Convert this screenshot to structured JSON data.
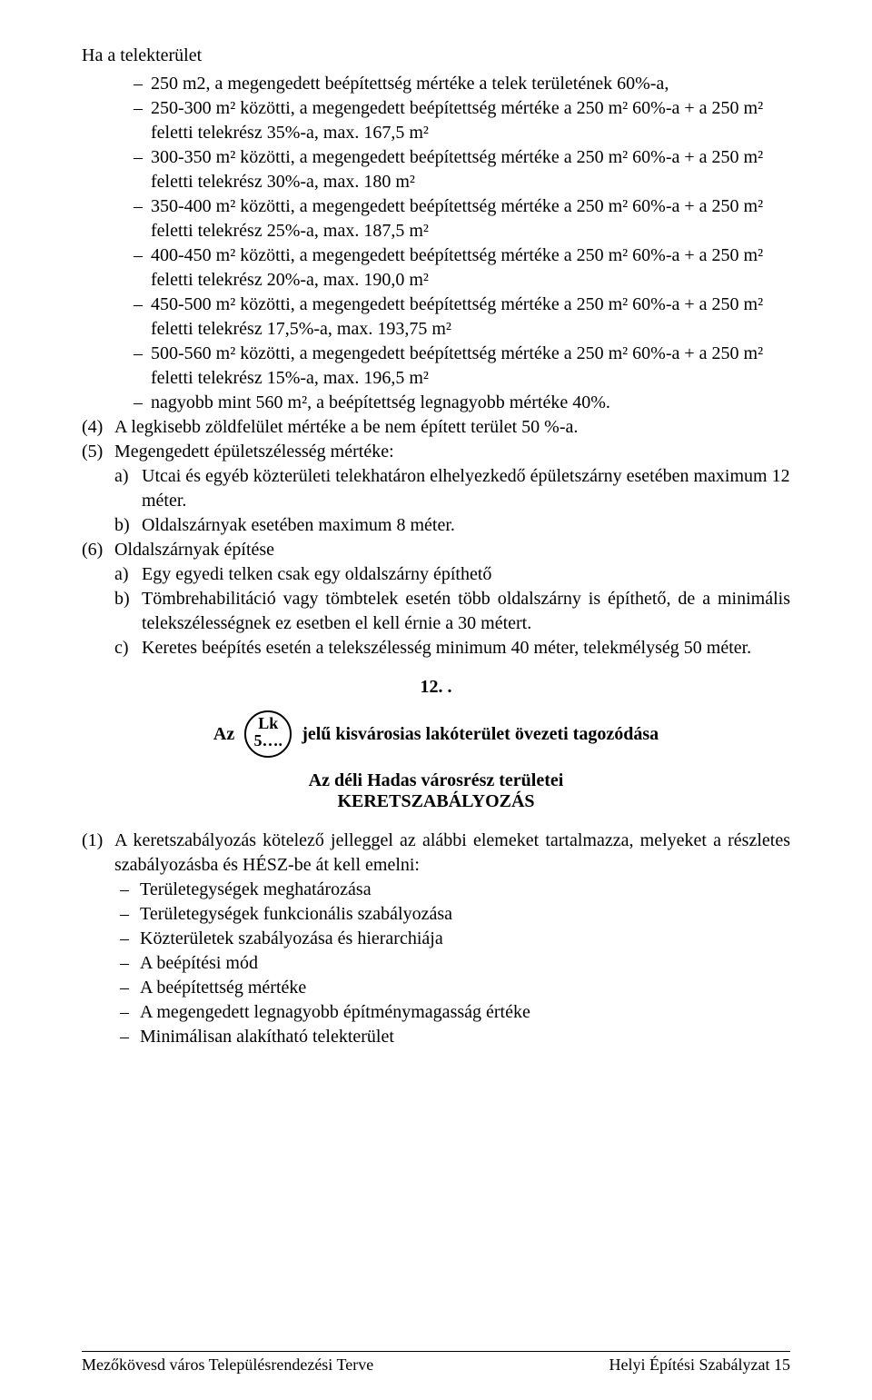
{
  "intro": "Ha a telekterület",
  "bullets": [
    {
      "lead": "250 m2, a megengedett beépítettség mértéke a telek területének 60%-a,",
      "cont": null
    },
    {
      "lead": "250-300 m² közötti, a megengedett beépítettség mértéke a 250 m² 60%-a + a 250 m² feletti telekrész 35%-a, max. 167,5 m²",
      "cont": null
    },
    {
      "lead": "300-350 m² közötti, a megengedett beépítettség mértéke a 250 m² 60%-a + a 250 m² feletti telekrész 30%-a, max. 180 m²",
      "cont": null
    },
    {
      "lead": "350-400 m² közötti, a megengedett beépítettség mértéke a 250 m² 60%-a + a 250 m² feletti telekrész 25%-a, max. 187,5 m²",
      "cont": null
    },
    {
      "lead": "400-450 m² közötti, a megengedett beépítettség mértéke a 250 m² 60%-a + a 250 m² feletti telekrész 20%-a, max. 190,0 m²",
      "cont": null
    },
    {
      "lead": "450-500 m² közötti, a megengedett beépítettség mértéke a 250 m² 60%-a + a 250 m² feletti telekrész 17,5%-a, max. 193,75 m²",
      "cont": null
    },
    {
      "lead": "500-560 m² közötti, a megengedett beépítettség mértéke a 250 m² 60%-a + a 250 m² feletti telekrész 15%-a, max. 196,5 m²",
      "cont": null
    },
    {
      "lead": "nagyobb mint 560 m², a beépítettség legnagyobb mértéke 40%.",
      "cont": null
    }
  ],
  "num4": {
    "label": "(4)",
    "text": "A legkisebb zöldfelület mértéke a be nem épített terület 50 %-a."
  },
  "num5": {
    "label": "(5)",
    "text": "Megengedett épületszélesség mértéke:"
  },
  "num5_letters": [
    {
      "label": "a)",
      "text": "Utcai és egyéb közterületi telekhatáron elhelyezkedő épületszárny esetében maximum 12 méter."
    },
    {
      "label": "b)",
      "text": "Oldalszárnyak esetében maximum 8 méter."
    }
  ],
  "num6": {
    "label": "(6)",
    "text": "Oldalszárnyak építése"
  },
  "num6_letters": [
    {
      "label": "a)",
      "text": "Egy egyedi telken csak egy oldalszárny építhető"
    },
    {
      "label": "b)",
      "text": "Tömbrehabilitáció vagy tömbtelek esetén több oldalszárny is építhető, de a minimális telekszélességnek ez esetben el kell érnie a 30 métert."
    },
    {
      "label": "c)",
      "text": "Keretes beépítés esetén a telekszélesség minimum 40 méter, telekmélység 50 méter."
    }
  ],
  "section_number": "12. .",
  "az_prefix": "Az",
  "circle_top": "Lk",
  "circle_bot": "5….",
  "az_suffix": "jelű kisvárosias lakóterület övezeti tagozódása",
  "center1": "Az déli Hadas városrész területei",
  "center2": "KERETSZABÁLYOZÁS",
  "para1_label": "(1)",
  "para1_lead": "A keretszabályozás kötelező jelleggel az alábbi elemeket tartalmazza, melyeket a részletes szabályozásba és HÉSZ-be át kell emelni:",
  "para1_items": [
    "Területegységek meghatározása",
    "Területegységek funkcionális szabályozása",
    "Közterületek szabályozása és hierarchiája",
    "A beépítési mód",
    "A beépítettség mértéke",
    "A megengedett legnagyobb építménymagasság értéke",
    "Minimálisan alakítható telekterület"
  ],
  "footer_left": "Mezőkövesd város Településrendezési Terve",
  "footer_right": "Helyi Építési Szabályzat 15"
}
